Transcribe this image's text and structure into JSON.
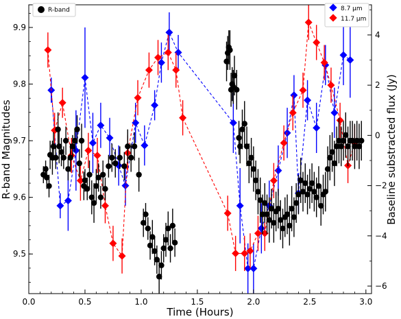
{
  "chart_data": {
    "type": "scatter",
    "xlabel": "Time (Hours)",
    "ylabel_left": "R-band Magnitudes",
    "ylabel_right": "Baseline substracted flux (Jy)",
    "xlim": [
      0.0,
      3.05
    ],
    "xticks": [
      "0.0",
      "0.5",
      "1.0",
      "1.5",
      "2.0",
      "2.5",
      "3.0"
    ],
    "ylim_left": [
      9.94,
      9.43
    ],
    "yticks_left": [
      "9.5",
      "9.6",
      "9.7",
      "9.8",
      "9.9"
    ],
    "ylim_right": [
      -6.3,
      5.2
    ],
    "yticks_right": [
      "4",
      "2",
      "0",
      "−2",
      "−4",
      "−6"
    ],
    "legend_left": {
      "label": "R-band",
      "placement": "top-left"
    },
    "legend_right": {
      "labels": [
        "8.7 μm",
        "11.7 μm"
      ],
      "placement": "top-right"
    },
    "rband": [
      [
        0.13,
        9.64,
        0.015
      ],
      [
        0.15,
        9.65,
        0.015
      ],
      [
        0.16,
        9.635,
        0.02
      ],
      [
        0.18,
        9.62,
        0.02
      ],
      [
        0.19,
        9.675,
        0.025
      ],
      [
        0.21,
        9.67,
        0.03
      ],
      [
        0.22,
        9.69,
        0.025
      ],
      [
        0.24,
        9.67,
        0.02
      ],
      [
        0.26,
        9.72,
        0.03
      ],
      [
        0.27,
        9.69,
        0.03
      ],
      [
        0.29,
        9.68,
        0.025
      ],
      [
        0.31,
        9.67,
        0.02
      ],
      [
        0.33,
        9.7,
        0.025
      ],
      [
        0.35,
        9.65,
        0.02
      ],
      [
        0.37,
        9.67,
        0.025
      ],
      [
        0.39,
        9.69,
        0.02
      ],
      [
        0.41,
        9.7,
        0.02
      ],
      [
        0.43,
        9.72,
        0.025
      ],
      [
        0.45,
        9.66,
        0.025
      ],
      [
        0.47,
        9.7,
        0.03
      ],
      [
        0.49,
        9.62,
        0.025
      ],
      [
        0.5,
        9.63,
        0.02
      ],
      [
        0.52,
        9.615,
        0.02
      ],
      [
        0.54,
        9.64,
        0.025
      ],
      [
        0.56,
        9.6,
        0.03
      ],
      [
        0.58,
        9.59,
        0.035
      ],
      [
        0.6,
        9.62,
        0.03
      ],
      [
        0.62,
        9.635,
        0.025
      ],
      [
        0.64,
        9.6,
        0.02
      ],
      [
        0.66,
        9.64,
        0.025
      ],
      [
        0.68,
        9.615,
        0.02
      ],
      [
        0.71,
        9.655,
        0.02
      ],
      [
        0.74,
        9.67,
        0.025
      ],
      [
        0.77,
        9.66,
        0.025
      ],
      [
        0.81,
        9.67,
        0.02
      ],
      [
        0.85,
        9.655,
        0.025
      ],
      [
        0.88,
        9.69,
        0.03
      ],
      [
        0.91,
        9.67,
        0.025
      ],
      [
        0.94,
        9.69,
        0.025
      ],
      [
        0.98,
        9.64,
        0.03
      ],
      [
        1.02,
        9.555,
        0.025
      ],
      [
        1.04,
        9.57,
        0.02
      ],
      [
        1.06,
        9.545,
        0.02
      ],
      [
        1.08,
        9.515,
        0.025
      ],
      [
        1.1,
        9.53,
        0.03
      ],
      [
        1.12,
        9.505,
        0.025
      ],
      [
        1.14,
        9.49,
        0.025
      ],
      [
        1.16,
        9.46,
        0.03
      ],
      [
        1.18,
        9.48,
        0.025
      ],
      [
        1.2,
        9.51,
        0.025
      ],
      [
        1.22,
        9.525,
        0.03
      ],
      [
        1.24,
        9.545,
        0.03
      ],
      [
        1.26,
        9.51,
        0.025
      ],
      [
        1.28,
        9.55,
        0.03
      ],
      [
        1.3,
        9.52,
        0.025
      ],
      [
        1.76,
        9.84,
        0.035
      ],
      [
        1.77,
        9.855,
        0.03
      ],
      [
        1.78,
        9.865,
        0.03
      ],
      [
        1.79,
        9.86,
        0.035
      ],
      [
        1.8,
        9.79,
        0.03
      ],
      [
        1.81,
        9.8,
        0.03
      ],
      [
        1.82,
        9.795,
        0.03
      ],
      [
        1.83,
        9.815,
        0.035
      ],
      [
        1.85,
        9.79,
        0.035
      ],
      [
        1.87,
        9.705,
        0.03
      ],
      [
        1.88,
        9.69,
        0.03
      ],
      [
        1.9,
        9.72,
        0.035
      ],
      [
        1.92,
        9.73,
        0.04
      ],
      [
        1.94,
        9.69,
        0.035
      ],
      [
        1.96,
        9.66,
        0.035
      ],
      [
        1.98,
        9.67,
        0.035
      ],
      [
        2.0,
        9.65,
        0.04
      ],
      [
        2.02,
        9.63,
        0.035
      ],
      [
        2.04,
        9.61,
        0.04
      ],
      [
        2.06,
        9.595,
        0.04
      ],
      [
        2.08,
        9.57,
        0.035
      ],
      [
        2.1,
        9.59,
        0.035
      ],
      [
        2.12,
        9.57,
        0.035
      ],
      [
        2.14,
        9.56,
        0.04
      ],
      [
        2.16,
        9.58,
        0.035
      ],
      [
        2.18,
        9.555,
        0.035
      ],
      [
        2.2,
        9.575,
        0.035
      ],
      [
        2.22,
        9.58,
        0.035
      ],
      [
        2.24,
        9.56,
        0.035
      ],
      [
        2.26,
        9.545,
        0.035
      ],
      [
        2.28,
        9.565,
        0.035
      ],
      [
        2.3,
        9.57,
        0.035
      ],
      [
        2.32,
        9.55,
        0.035
      ],
      [
        2.34,
        9.58,
        0.04
      ],
      [
        2.36,
        9.565,
        0.035
      ],
      [
        2.38,
        9.59,
        0.035
      ],
      [
        2.4,
        9.605,
        0.035
      ],
      [
        2.42,
        9.63,
        0.04
      ],
      [
        2.44,
        9.61,
        0.035
      ],
      [
        2.46,
        9.625,
        0.035
      ],
      [
        2.48,
        9.605,
        0.035
      ],
      [
        2.5,
        9.615,
        0.035
      ],
      [
        2.52,
        9.625,
        0.035
      ],
      [
        2.54,
        9.61,
        0.035
      ],
      [
        2.56,
        9.6,
        0.035
      ],
      [
        2.58,
        9.62,
        0.035
      ],
      [
        2.6,
        9.585,
        0.035
      ],
      [
        2.62,
        9.605,
        0.035
      ],
      [
        2.64,
        9.61,
        0.035
      ],
      [
        2.66,
        9.65,
        0.04
      ],
      [
        2.68,
        9.67,
        0.04
      ],
      [
        2.7,
        9.68,
        0.035
      ],
      [
        2.72,
        9.66,
        0.04
      ],
      [
        2.74,
        9.69,
        0.035
      ],
      [
        2.76,
        9.7,
        0.04
      ],
      [
        2.78,
        9.69,
        0.035
      ],
      [
        2.8,
        9.7,
        0.035
      ],
      [
        2.82,
        9.71,
        0.04
      ],
      [
        2.84,
        9.69,
        0.035
      ],
      [
        2.86,
        9.7,
        0.035
      ],
      [
        2.88,
        9.7,
        0.035
      ],
      [
        2.9,
        9.69,
        0.04
      ],
      [
        2.92,
        9.7,
        0.035
      ],
      [
        2.94,
        9.69,
        0.04
      ],
      [
        2.96,
        9.7,
        0.035
      ]
    ],
    "series": [
      {
        "name": "8.7 μm",
        "color": "#0000ff",
        "marker": "diamond",
        "points": [
          [
            0.2,
            1.8,
            0.5
          ],
          [
            0.28,
            -2.8,
            0.5
          ],
          [
            0.35,
            -2.6,
            1.2
          ],
          [
            0.42,
            -0.6,
            1.6
          ],
          [
            0.5,
            2.3,
            2.0
          ],
          [
            0.57,
            -0.3,
            1.2
          ],
          [
            0.64,
            0.4,
            0.9
          ],
          [
            0.72,
            -0.1,
            0.8
          ],
          [
            0.8,
            -1.2,
            0.8
          ],
          [
            0.86,
            -2.0,
            0.8
          ],
          [
            0.95,
            0.5,
            0.8
          ],
          [
            1.03,
            -0.4,
            0.8
          ],
          [
            1.12,
            1.2,
            0.6
          ],
          [
            1.18,
            2.9,
            0.8
          ],
          [
            1.25,
            4.1,
            0.8
          ],
          [
            1.33,
            3.3,
            0.7
          ],
          [
            1.82,
            0.5,
            1.2
          ],
          [
            1.88,
            -2.8,
            1.5
          ],
          [
            1.95,
            -5.3,
            1.0
          ],
          [
            2.0,
            -5.3,
            1.0
          ],
          [
            2.07,
            -3.7,
            1.0
          ],
          [
            2.14,
            -2.8,
            1.0
          ],
          [
            2.22,
            -1.4,
            1.0
          ],
          [
            2.3,
            0.1,
            1.0
          ],
          [
            2.36,
            1.6,
            0.8
          ],
          [
            2.4,
            -2.3,
            0.8
          ],
          [
            2.48,
            1.4,
            0.8
          ],
          [
            2.56,
            0.3,
            1.0
          ],
          [
            2.64,
            2.8,
            0.8
          ],
          [
            2.72,
            0.9,
            1.0
          ],
          [
            2.8,
            3.2,
            1.2
          ],
          [
            2.86,
            3.0,
            1.5
          ]
        ]
      },
      {
        "name": "11.7 μm",
        "color": "#ff0000",
        "marker": "diamond",
        "points": [
          [
            0.17,
            3.4,
            0.7
          ],
          [
            0.23,
            0.2,
            0.7
          ],
          [
            0.3,
            1.3,
            0.6
          ],
          [
            0.38,
            -0.8,
            0.7
          ],
          [
            0.46,
            -1.8,
            0.8
          ],
          [
            0.53,
            -0.6,
            0.7
          ],
          [
            0.61,
            -0.8,
            0.7
          ],
          [
            0.68,
            -2.8,
            0.7
          ],
          [
            0.75,
            -4.3,
            0.7
          ],
          [
            0.83,
            -4.8,
            0.7
          ],
          [
            0.88,
            -0.7,
            0.7
          ],
          [
            0.97,
            1.5,
            0.7
          ],
          [
            1.07,
            2.6,
            0.7
          ],
          [
            1.15,
            3.1,
            0.7
          ],
          [
            1.24,
            3.3,
            0.7
          ],
          [
            1.31,
            2.6,
            0.7
          ],
          [
            1.37,
            0.7,
            0.7
          ],
          [
            1.77,
            -3.1,
            0.7
          ],
          [
            1.84,
            -4.7,
            0.7
          ],
          [
            1.92,
            -4.7,
            0.7
          ],
          [
            1.97,
            -4.6,
            0.7
          ],
          [
            2.04,
            -3.9,
            0.7
          ],
          [
            2.1,
            -3.9,
            0.7
          ],
          [
            2.18,
            -1.8,
            0.7
          ],
          [
            2.27,
            -0.3,
            0.7
          ],
          [
            2.35,
            0.9,
            0.7
          ],
          [
            2.44,
            1.8,
            0.7
          ],
          [
            2.49,
            4.5,
            0.7
          ],
          [
            2.56,
            3.7,
            0.7
          ],
          [
            2.63,
            2.9,
            0.7
          ],
          [
            2.69,
            2.0,
            0.7
          ],
          [
            2.77,
            0.6,
            0.7
          ],
          [
            2.84,
            -1.2,
            0.7
          ],
          [
            2.9,
            -0.3,
            0.7
          ]
        ]
      }
    ],
    "grid": false
  }
}
